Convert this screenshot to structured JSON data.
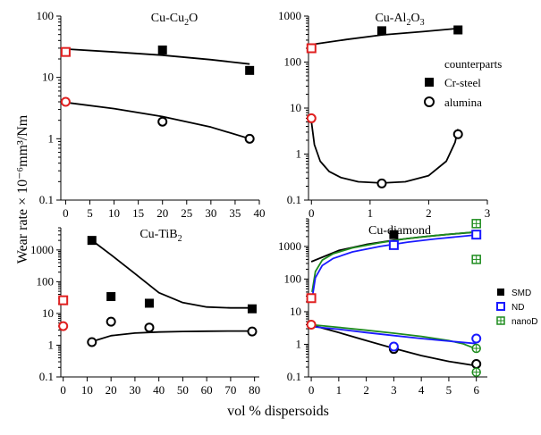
{
  "axes": {
    "ylabel": "Wear rate × 10⁻⁶mm³/Nm",
    "xlabel": "vol % dispersoids"
  },
  "legends": {
    "counterparts": {
      "title": "counterparts",
      "items": [
        {
          "label": "Cr-steel",
          "marker": "filled-square",
          "color": "#000000"
        },
        {
          "label": "alumina",
          "marker": "open-circle",
          "color": "#000000"
        }
      ]
    },
    "diamond": {
      "items": [
        {
          "label": "SMD",
          "marker": "filled-square",
          "color": "#000000"
        },
        {
          "label": "ND",
          "marker": "open-square",
          "color": "#1a1aff"
        },
        {
          "label": "nanoD",
          "marker": "crossed-square",
          "color": "#1e8c1e"
        }
      ]
    }
  },
  "chart_data": [
    {
      "id": "cu-cu2o",
      "type": "scatter",
      "title_parts": [
        [
          "Cu-Cu",
          false
        ],
        [
          "2",
          true
        ],
        [
          "O",
          false
        ]
      ],
      "title": "Cu-Cu2O",
      "xlim": [
        -1,
        40
      ],
      "ylim": [
        0.1,
        100
      ],
      "yscale": "log",
      "xticks": [
        0,
        5,
        10,
        15,
        20,
        25,
        30,
        35,
        40
      ],
      "yticks": [
        0.1,
        1,
        10,
        100
      ],
      "ytick_labels": [
        "0.1",
        "1",
        "10",
        "100"
      ],
      "series": [
        {
          "counterpart": "Cr-steel",
          "marker": "filled-square",
          "color": "#000000",
          "x": [
            20,
            38
          ],
          "y": [
            28,
            13
          ]
        },
        {
          "counterpart": "Cr-steel",
          "marker": "open-square",
          "color": "#e02020",
          "x": [
            0
          ],
          "y": [
            26
          ]
        },
        {
          "counterpart": "alumina",
          "marker": "open-circle",
          "color": "#000000",
          "x": [
            20,
            38
          ],
          "y": [
            1.9,
            1.0
          ]
        },
        {
          "counterpart": "alumina",
          "marker": "open-circle",
          "color": "#e02020",
          "x": [
            0
          ],
          "y": [
            4.0
          ]
        }
      ],
      "curves": [
        {
          "color": "#000000",
          "x": [
            0,
            10,
            20,
            30,
            38
          ],
          "y": [
            29,
            26,
            23,
            19.5,
            16.5
          ]
        },
        {
          "color": "#000000",
          "x": [
            0,
            10,
            20,
            30,
            38
          ],
          "y": [
            3.9,
            3.1,
            2.3,
            1.55,
            1.0
          ]
        }
      ]
    },
    {
      "id": "cu-al2o3",
      "type": "scatter",
      "title_parts": [
        [
          "Cu-Al",
          false
        ],
        [
          "2",
          true
        ],
        [
          "O",
          false
        ],
        [
          "3",
          true
        ]
      ],
      "title": "Cu-Al2O3",
      "xlim": [
        -0.05,
        3
      ],
      "ylim": [
        0.1,
        1000
      ],
      "yscale": "log",
      "xticks": [
        0,
        1,
        2,
        3
      ],
      "yticks": [
        0.1,
        1,
        10,
        100,
        1000
      ],
      "ytick_labels": [
        "0.1",
        "1",
        "10",
        "100",
        "1000"
      ],
      "series": [
        {
          "counterpart": "Cr-steel",
          "marker": "filled-square",
          "color": "#000000",
          "x": [
            1.2,
            2.5
          ],
          "y": [
            480,
            500
          ]
        },
        {
          "counterpart": "Cr-steel",
          "marker": "open-square",
          "color": "#e02020",
          "x": [
            0
          ],
          "y": [
            200
          ]
        },
        {
          "counterpart": "alumina",
          "marker": "open-circle",
          "color": "#000000",
          "x": [
            1.2,
            2.5
          ],
          "y": [
            0.23,
            2.7
          ]
        },
        {
          "counterpart": "alumina",
          "marker": "open-circle",
          "color": "#e02020",
          "x": [
            0
          ],
          "y": [
            6.0
          ]
        }
      ],
      "curves": [
        {
          "color": "#000000",
          "x": [
            0,
            0.6,
            1.2,
            1.9,
            2.5
          ],
          "y": [
            240,
            310,
            390,
            460,
            540
          ]
        },
        {
          "color": "#000000",
          "x": [
            0,
            0.05,
            0.15,
            0.3,
            0.5,
            0.8,
            1.2,
            1.6,
            2.0,
            2.3,
            2.45,
            2.5
          ],
          "y": [
            5.0,
            1.6,
            0.7,
            0.42,
            0.31,
            0.25,
            0.235,
            0.25,
            0.34,
            0.7,
            1.8,
            3.5
          ]
        }
      ]
    },
    {
      "id": "cu-tib2",
      "type": "scatter",
      "title_parts": [
        [
          "Cu-TiB",
          false
        ],
        [
          "2",
          true
        ]
      ],
      "title": "Cu-TiB2",
      "xlim": [
        -1,
        82
      ],
      "ylim": [
        0.1,
        5000
      ],
      "yscale": "log",
      "xticks": [
        0,
        10,
        20,
        30,
        40,
        50,
        60,
        70,
        80
      ],
      "yticks": [
        0.1,
        1,
        10,
        100,
        1000
      ],
      "ytick_labels": [
        "0.1",
        "1",
        "10",
        "100",
        "1000"
      ],
      "series": [
        {
          "counterpart": "Cr-steel",
          "marker": "filled-square",
          "color": "#000000",
          "x": [
            12,
            20,
            36,
            79
          ],
          "y": [
            2000,
            34,
            21,
            14
          ]
        },
        {
          "counterpart": "Cr-steel",
          "marker": "open-square",
          "color": "#e02020",
          "x": [
            0
          ],
          "y": [
            26
          ]
        },
        {
          "counterpart": "alumina",
          "marker": "open-circle",
          "color": "#000000",
          "x": [
            12,
            20,
            36,
            79
          ],
          "y": [
            1.25,
            5.5,
            3.6,
            2.7
          ]
        },
        {
          "counterpart": "alumina",
          "marker": "open-circle",
          "color": "#e02020",
          "x": [
            0
          ],
          "y": [
            4.0
          ]
        }
      ],
      "curves": [
        {
          "color": "#000000",
          "x": [
            12,
            20,
            30,
            40,
            50,
            60,
            70,
            79
          ],
          "y": [
            2000,
            700,
            180,
            45,
            22,
            16,
            15,
            15
          ]
        },
        {
          "color": "#000000",
          "x": [
            12,
            20,
            30,
            40,
            50,
            60,
            70,
            79
          ],
          "y": [
            1.3,
            2.0,
            2.4,
            2.6,
            2.7,
            2.75,
            2.8,
            2.8
          ]
        }
      ]
    },
    {
      "id": "cu-diamond",
      "type": "scatter",
      "title_parts": [
        [
          "Cu-diamond",
          false
        ]
      ],
      "title": "Cu-diamond",
      "xlim": [
        -0.1,
        6.4
      ],
      "ylim": [
        0.1,
        7000
      ],
      "yscale": "log",
      "xticks": [
        0,
        1,
        2,
        3,
        4,
        5,
        6
      ],
      "yticks": [
        0.1,
        1,
        10,
        100,
        1000
      ],
      "ytick_labels": [
        "0.1",
        "1",
        "10",
        "100",
        "1000"
      ],
      "series": [
        {
          "name": "SMD",
          "marker": "filled-square",
          "color": "#000000",
          "x": [
            3
          ],
          "y": [
            2300
          ]
        },
        {
          "name": "ND",
          "marker": "open-square",
          "color": "#1a1aff",
          "x": [
            3,
            6
          ],
          "y": [
            1100,
            2300
          ]
        },
        {
          "name": "nanoD",
          "marker": "crossed-square",
          "color": "#1e8c1e",
          "x": [
            6,
            6
          ],
          "y": [
            5000,
            400
          ]
        },
        {
          "marker": "open-square",
          "color": "#e02020",
          "x": [
            0
          ],
          "y": [
            26
          ]
        },
        {
          "name": "SMD",
          "marker": "open-circle",
          "color": "#000000",
          "x": [
            3,
            6
          ],
          "y": [
            0.72,
            0.25
          ]
        },
        {
          "name": "ND",
          "marker": "open-circle",
          "color": "#1a1aff",
          "x": [
            3,
            6
          ],
          "y": [
            0.85,
            1.5
          ]
        },
        {
          "name": "nanoD",
          "marker": "crossed-circle",
          "color": "#1e8c1e",
          "x": [
            6,
            6
          ],
          "y": [
            0.75,
            0.14
          ]
        },
        {
          "marker": "open-circle",
          "color": "#e02020",
          "x": [
            0
          ],
          "y": [
            4.0
          ]
        }
      ],
      "curves": [
        {
          "color": "#000000",
          "x": [
            0,
            1,
            2,
            3,
            4,
            5,
            6
          ],
          "y": [
            340,
            750,
            1150,
            1550,
            1950,
            2350,
            2750
          ]
        },
        {
          "color": "#1e8c1e",
          "x": [
            0.03,
            0.15,
            0.4,
            0.8,
            1.5,
            2.5,
            3.5,
            4.5,
            5.5,
            6
          ],
          "y": [
            40,
            170,
            380,
            600,
            900,
            1300,
            1750,
            2150,
            2550,
            2800
          ]
        },
        {
          "color": "#1a1aff",
          "x": [
            0.03,
            0.15,
            0.4,
            0.8,
            1.5,
            2.5,
            3.5,
            4.5,
            5.5,
            6
          ],
          "y": [
            25,
            110,
            260,
            430,
            680,
            1000,
            1350,
            1700,
            2050,
            2250
          ]
        },
        {
          "color": "#000000",
          "x": [
            0,
            1,
            2,
            3,
            4,
            5,
            6
          ],
          "y": [
            3.9,
            2.3,
            1.3,
            0.75,
            0.45,
            0.3,
            0.22
          ]
        },
        {
          "color": "#1e8c1e",
          "x": [
            0,
            1,
            2,
            3,
            4,
            5,
            5.5,
            6
          ],
          "y": [
            4.0,
            3.3,
            2.7,
            2.2,
            1.75,
            1.3,
            1.05,
            0.72
          ]
        },
        {
          "color": "#1a1aff",
          "x": [
            0,
            1,
            2,
            3,
            4,
            5,
            6
          ],
          "y": [
            3.5,
            2.9,
            2.3,
            1.85,
            1.5,
            1.25,
            1.05
          ]
        }
      ]
    }
  ]
}
